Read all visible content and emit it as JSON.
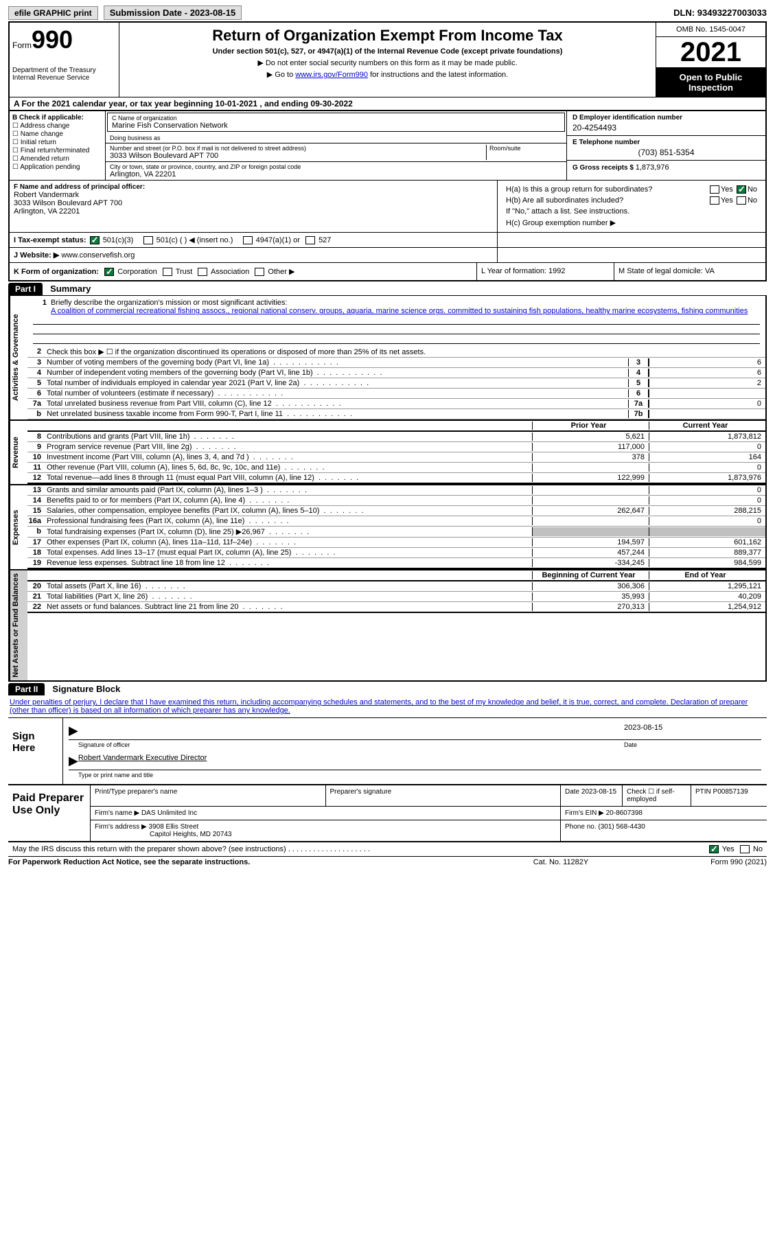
{
  "top": {
    "efile": "efile GRAPHIC print",
    "sub_date_lbl": "Submission Date - 2023-08-15",
    "dln": "DLN: 93493227003033"
  },
  "header": {
    "form_word": "Form",
    "form_no": "990",
    "dept": "Department of the Treasury\nInternal Revenue Service",
    "title": "Return of Organization Exempt From Income Tax",
    "sub1": "Under section 501(c), 527, or 4947(a)(1) of the Internal Revenue Code (except private foundations)",
    "note1": "▶ Do not enter social security numbers on this form as it may be made public.",
    "note2_pre": "▶ Go to ",
    "note2_link": "www.irs.gov/Form990",
    "note2_post": " for instructions and the latest information.",
    "omb": "OMB No. 1545-0047",
    "year": "2021",
    "open": "Open to Public Inspection"
  },
  "rowA": {
    "pre": "A For the 2021 calendar year, or tax year beginning ",
    "begin": "10-01-2021",
    "mid": " , and ending ",
    "end": "09-30-2022"
  },
  "colB": {
    "hdr": "B Check if applicable:",
    "items": [
      "Address change",
      "Name change",
      "Initial return",
      "Final return/terminated",
      "Amended return",
      "Application pending"
    ]
  },
  "colC": {
    "name_lbl": "C Name of organization",
    "name": "Marine Fish Conservation Network",
    "dba_lbl": "Doing business as",
    "dba": "",
    "addr_lbl": "Number and street (or P.O. box if mail is not delivered to street address)",
    "addr": "3033 Wilson Boulevard APT 700",
    "room_lbl": "Room/suite",
    "city_lbl": "City or town, state or province, country, and ZIP or foreign postal code",
    "city": "Arlington, VA  22201"
  },
  "colD": {
    "ein_lbl": "D Employer identification number",
    "ein": "20-4254493",
    "tel_lbl": "E Telephone number",
    "tel": "(703) 851-5354",
    "gross_lbl": "G Gross receipts $ ",
    "gross": "1,873,976"
  },
  "rowF": {
    "lbl": "F  Name and address of principal officer:",
    "name": "Robert Vandermark",
    "addr1": "3033 Wilson Boulevard APT 700",
    "addr2": "Arlington, VA  22201"
  },
  "rowH": {
    "a": "H(a)  Is this a group return for subordinates?",
    "b": "H(b)  Are all subordinates included?",
    "b_note": "If \"No,\" attach a list. See instructions.",
    "c": "H(c)  Group exemption number ▶",
    "yes": "Yes",
    "no": "No"
  },
  "rowI": {
    "lbl": "I   Tax-exempt status:",
    "o1": "501(c)(3)",
    "o2": "501(c) (  ) ◀ (insert no.)",
    "o3": "4947(a)(1) or",
    "o4": "527"
  },
  "rowJ": {
    "lbl": "J   Website: ▶ ",
    "val": "www.conservefish.org"
  },
  "rowK": {
    "lbl": "K Form of organization:",
    "o1": "Corporation",
    "o2": "Trust",
    "o3": "Association",
    "o4": "Other ▶",
    "l_lbl": "L Year of formation: ",
    "l_val": "1992",
    "m_lbl": "M State of legal domicile: ",
    "m_val": "VA"
  },
  "part1": {
    "hdr": "Part I",
    "title": "Summary",
    "tabs": [
      "Activities & Governance",
      "Revenue",
      "Expenses",
      "Net Assets or Fund Balances"
    ],
    "line1_lbl": "Briefly describe the organization's mission or most significant activities:",
    "line1_txt": "A coalition of commercial recreational fishing assocs., regional national conserv. groups, aquaria, marine science orgs. committed to sustaining fish populations, healthy marine ecosystems, fishing communities",
    "line2": "Check this box ▶ ☐  if the organization discontinued its operations or disposed of more than 25% of its net assets.",
    "lines_gov": [
      {
        "n": "3",
        "t": "Number of voting members of the governing body (Part VI, line 1a)",
        "bx": "3",
        "cv": "6"
      },
      {
        "n": "4",
        "t": "Number of independent voting members of the governing body (Part VI, line 1b)",
        "bx": "4",
        "cv": "6"
      },
      {
        "n": "5",
        "t": "Total number of individuals employed in calendar year 2021 (Part V, line 2a)",
        "bx": "5",
        "cv": "2"
      },
      {
        "n": "6",
        "t": "Total number of volunteers (estimate if necessary)",
        "bx": "6",
        "cv": ""
      },
      {
        "n": "7a",
        "t": "Total unrelated business revenue from Part VIII, column (C), line 12",
        "bx": "7a",
        "cv": "0"
      },
      {
        "n": "b",
        "t": "Net unrelated business taxable income from Form 990-T, Part I, line 11",
        "bx": "7b",
        "cv": ""
      }
    ],
    "rev_hdr": {
      "pv": "Prior Year",
      "cv": "Current Year"
    },
    "lines_rev": [
      {
        "n": "8",
        "t": "Contributions and grants (Part VIII, line 1h)",
        "pv": "5,621",
        "cv": "1,873,812"
      },
      {
        "n": "9",
        "t": "Program service revenue (Part VIII, line 2g)",
        "pv": "117,000",
        "cv": "0"
      },
      {
        "n": "10",
        "t": "Investment income (Part VIII, column (A), lines 3, 4, and 7d )",
        "pv": "378",
        "cv": "164"
      },
      {
        "n": "11",
        "t": "Other revenue (Part VIII, column (A), lines 5, 6d, 8c, 9c, 10c, and 11e)",
        "pv": "",
        "cv": "0"
      },
      {
        "n": "12",
        "t": "Total revenue—add lines 8 through 11 (must equal Part VIII, column (A), line 12)",
        "pv": "122,999",
        "cv": "1,873,976"
      }
    ],
    "lines_exp": [
      {
        "n": "13",
        "t": "Grants and similar amounts paid (Part IX, column (A), lines 1–3 )",
        "pv": "",
        "cv": "0"
      },
      {
        "n": "14",
        "t": "Benefits paid to or for members (Part IX, column (A), line 4)",
        "pv": "",
        "cv": "0"
      },
      {
        "n": "15",
        "t": "Salaries, other compensation, employee benefits (Part IX, column (A), lines 5–10)",
        "pv": "262,647",
        "cv": "288,215"
      },
      {
        "n": "16a",
        "t": "Professional fundraising fees (Part IX, column (A), line 11e)",
        "pv": "",
        "cv": "0"
      },
      {
        "n": "b",
        "t": "Total fundraising expenses (Part IX, column (D), line 25) ▶26,967",
        "pv": "shade",
        "cv": "shade"
      },
      {
        "n": "17",
        "t": "Other expenses (Part IX, column (A), lines 11a–11d, 11f–24e)",
        "pv": "194,597",
        "cv": "601,162"
      },
      {
        "n": "18",
        "t": "Total expenses. Add lines 13–17 (must equal Part IX, column (A), line 25)",
        "pv": "457,244",
        "cv": "889,377"
      },
      {
        "n": "19",
        "t": "Revenue less expenses. Subtract line 18 from line 12",
        "pv": "-334,245",
        "cv": "984,599"
      }
    ],
    "net_hdr": {
      "pv": "Beginning of Current Year",
      "cv": "End of Year"
    },
    "lines_net": [
      {
        "n": "20",
        "t": "Total assets (Part X, line 16)",
        "pv": "306,306",
        "cv": "1,295,121"
      },
      {
        "n": "21",
        "t": "Total liabilities (Part X, line 26)",
        "pv": "35,993",
        "cv": "40,209"
      },
      {
        "n": "22",
        "t": "Net assets or fund balances. Subtract line 21 from line 20",
        "pv": "270,313",
        "cv": "1,254,912"
      }
    ]
  },
  "part2": {
    "hdr": "Part II",
    "title": "Signature Block",
    "intro": "Under penalties of perjury, I declare that I have examined this return, including accompanying schedules and statements, and to the best of my knowledge and belief, it is true, correct, and complete. Declaration of preparer (other than officer) is based on all information of which preparer has any knowledge.",
    "sign_lbl": "Sign Here",
    "sig_date": "2023-08-15",
    "sig_officer_lbl": "Signature of officer",
    "sig_date_lbl": "Date",
    "sig_name": "Robert Vandermark  Executive Director",
    "sig_name_lbl": "Type or print name and title",
    "prep_lbl": "Paid Preparer Use Only",
    "prep_cols": [
      "Print/Type preparer's name",
      "Preparer's signature",
      "Date 2023-08-15",
      "Check ☐ if self-employed",
      "PTIN P00857139"
    ],
    "firm_name_lbl": "Firm's name  ▶ ",
    "firm_name": "DAS Unlimited Inc",
    "firm_ein_lbl": "Firm's EIN ▶ ",
    "firm_ein": "20-8607398",
    "firm_addr_lbl": "Firm's address ▶ ",
    "firm_addr1": "3908 Ellis Street",
    "firm_addr2": "Capitol Heights, MD  20743",
    "phone_lbl": "Phone no. ",
    "phone": "(301) 568-4430",
    "discuss": "May the IRS discuss this return with the preparer shown above? (see instructions)",
    "yes": "Yes",
    "no": "No"
  },
  "footer": {
    "l": "For Paperwork Reduction Act Notice, see the separate instructions.",
    "m": "Cat. No. 11282Y",
    "r": "Form 990 (2021)"
  }
}
